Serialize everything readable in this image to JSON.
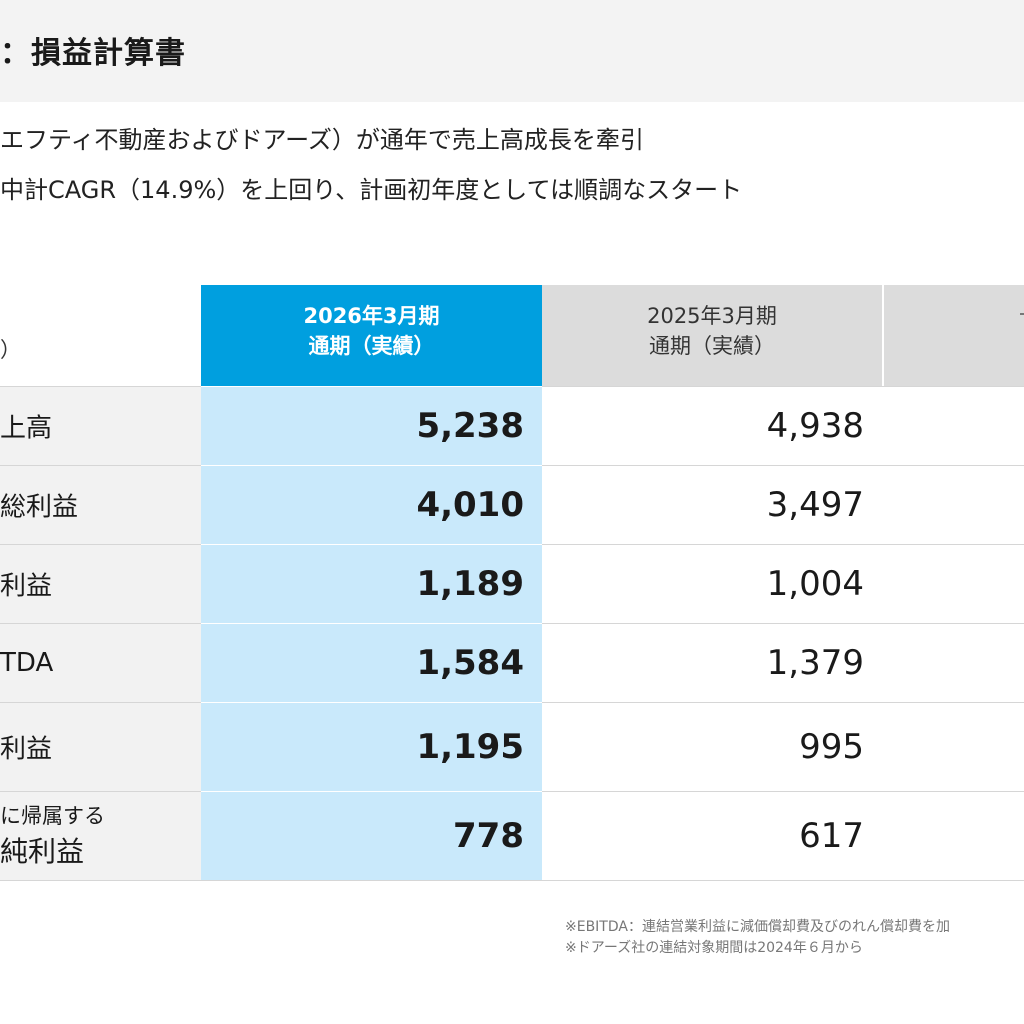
{
  "title": "：損益計算書",
  "summary": {
    "line1": "エフティ不動産およびドアーズ）が通年で売上高成長を牽引",
    "line2": "中計CAGR（14.9%）を上回り、計画初年度としては順調なスタート"
  },
  "table": {
    "unit_label": "）",
    "headers": {
      "current": {
        "line1": "2026年3月期",
        "line2": "通期（実績）"
      },
      "previous": {
        "line1": "2025年3月期",
        "line2": "通期（実績）"
      }
    },
    "rows": [
      {
        "label": "上高",
        "current": "5,238",
        "previous": "4,938"
      },
      {
        "label": "総利益",
        "current": "4,010",
        "previous": "3,497"
      },
      {
        "label": "利益",
        "current": "1,189",
        "previous": "1,004"
      },
      {
        "label": "TDA",
        "current": "1,584",
        "previous": "1,379"
      },
      {
        "label": "利益",
        "current": "1,195",
        "previous": "995"
      },
      {
        "label_small": "に帰属する",
        "label": "純利益",
        "current": "778",
        "previous": "617"
      }
    ]
  },
  "footnotes": {
    "note1": "※EBITDA：連結営業利益に減価償却費及びのれん償却費を加",
    "note2": "※ドアーズ社の連結対象期間は2024年６月から"
  },
  "colors": {
    "header_current": "#009fdf",
    "current_column": "#c9e9fb",
    "header_other": "#dcdcdc",
    "label_column": "#f2f2f2"
  }
}
